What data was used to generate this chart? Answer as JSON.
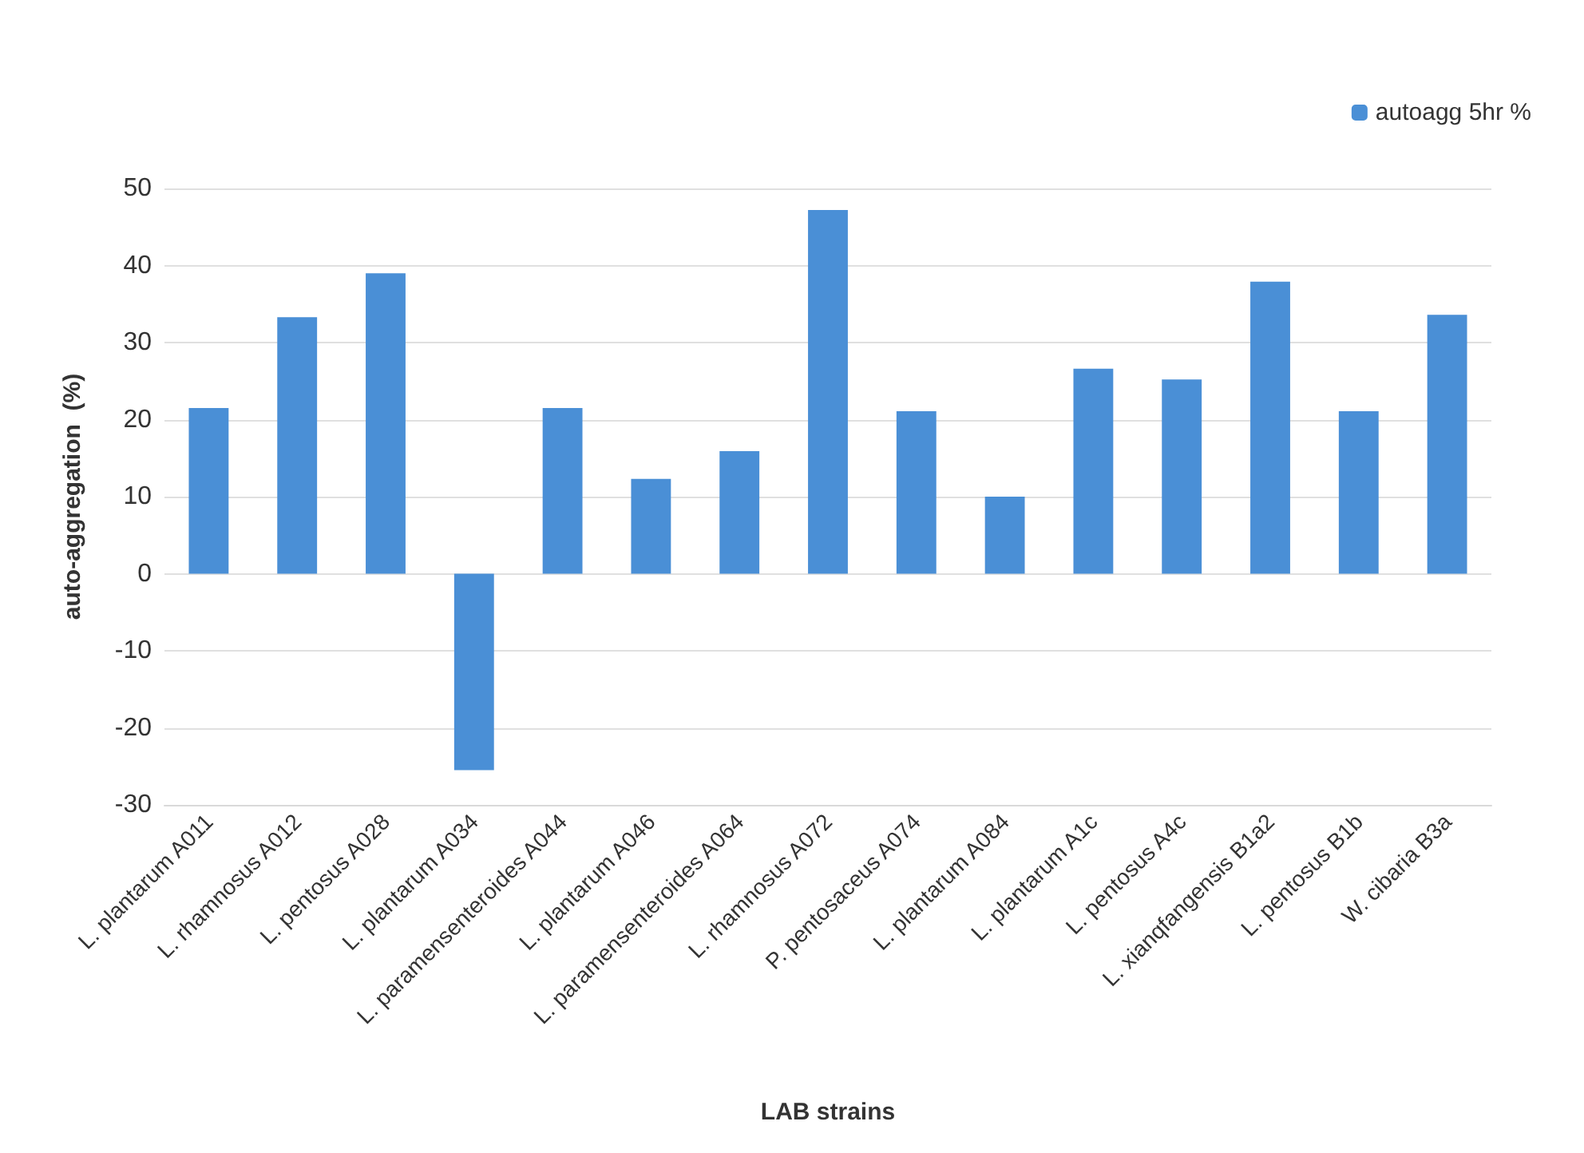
{
  "chart_data": {
    "type": "bar",
    "xlabel": "LAB strains",
    "ylabel": "auto-aggregation  (%)",
    "categories": [
      "L. plantarum A011",
      "L. rhamnosus A012",
      "L. pentosus A028",
      "L. plantarum A034",
      "L. paramensenteroides A044",
      "L. plantarum A046",
      "L. paramensenteroides A064",
      "L. rhamnosus A072",
      "P. pentosaceus A074",
      "L. plantarum A084",
      "L. plantarum A1c",
      "L. pentosus A4c",
      "L. xianqfangensis B1a2",
      "L. pentosus B1b",
      "W. cibaria B3a"
    ],
    "series": [
      {
        "name": "autoagg 5hr %",
        "color": "#4a8fd6",
        "values": [
          21.5,
          33.3,
          39,
          -25.5,
          21.5,
          12.3,
          15.9,
          47.2,
          21.1,
          10,
          26.6,
          25.2,
          37.9,
          21.1,
          33.6
        ]
      }
    ],
    "ylim": [
      -30,
      50
    ],
    "yticks": [
      -30,
      -20,
      -10,
      0,
      10,
      20,
      30,
      40,
      50
    ],
    "grid": "y",
    "legend": "top right"
  }
}
